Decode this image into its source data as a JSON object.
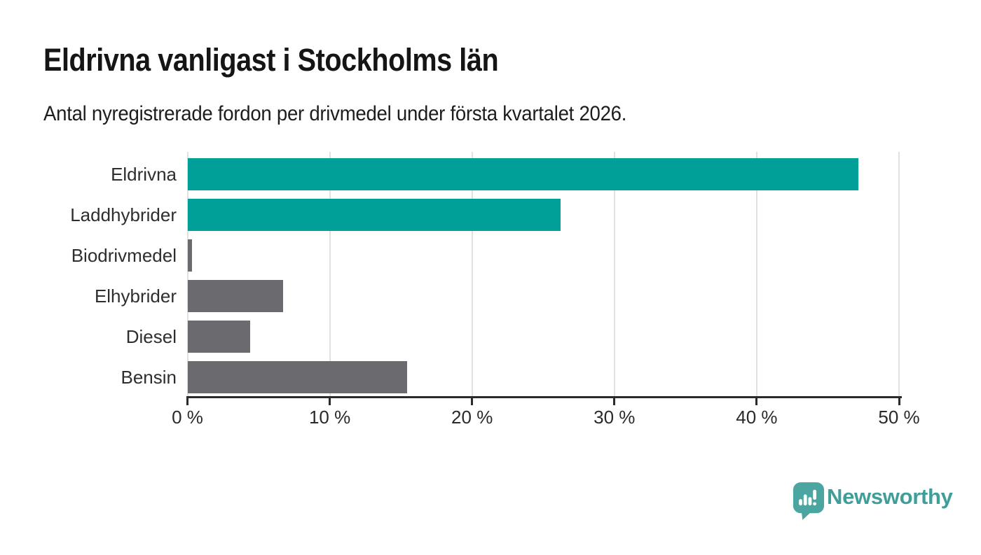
{
  "header": {
    "title": "Eldrivna vanligast i Stockholms län",
    "subtitle": "Antal nyregistrerade fordon per drivmedel under första kvartalet 2026."
  },
  "chart_data": {
    "type": "bar",
    "orientation": "horizontal",
    "title": "Eldrivna vanligast i Stockholms län",
    "subtitle": "Antal nyregistrerade fordon per drivmedel under första kvartalet 2026.",
    "categories": [
      "Eldrivna",
      "Laddhybrider",
      "Biodrivmedel",
      "Elhybrider",
      "Diesel",
      "Bensin"
    ],
    "values": [
      47.1,
      26.2,
      0.3,
      6.7,
      4.4,
      15.4
    ],
    "unit": "%",
    "xlim": [
      0,
      50
    ],
    "x_ticks": [
      0,
      10,
      20,
      30,
      40,
      50
    ],
    "x_tick_labels": [
      "0 %",
      "10 %",
      "20 %",
      "30 %",
      "40 %",
      "50 %"
    ],
    "grid": true,
    "legend": "none",
    "bar_colors": [
      "#00a099",
      "#00a099",
      "#6b6b6f",
      "#6b6b6f",
      "#6b6b6f",
      "#6b6b6f"
    ],
    "highlight_color": "#00a099",
    "default_color": "#6b6b6f"
  },
  "colors": {
    "accent_teal": "#00a099",
    "neutral_gray": "#6b6b6f",
    "axis": "#2b2b2b",
    "gridline": "#e1e1e1",
    "brand_teal": "#3f9e99",
    "logo_bubble_teal": "#4ba5a0"
  },
  "footer": {
    "brand": "Newsworthy",
    "logo_icon": "speech-bubble-bar-chart-icon"
  }
}
